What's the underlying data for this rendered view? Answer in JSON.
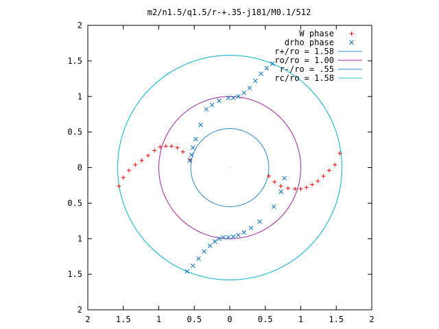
{
  "chart_data": {
    "type": "scatter",
    "title": "m2/n1.5/q1.5/r-+.35-j181/M0.1/512",
    "xlim": [
      -2,
      2
    ],
    "ylim": [
      -2,
      2
    ],
    "grid": false,
    "legend_position": "top-right",
    "x_ticks": [
      -2,
      -1.5,
      -1,
      -0.5,
      0,
      0.5,
      1,
      1.5,
      2
    ],
    "x_tick_labels": [
      "2",
      "1.5",
      "1",
      "0.5",
      "0",
      "0.5",
      "1",
      "1.5",
      "2"
    ],
    "y_ticks": [
      2,
      1.5,
      1,
      0.5,
      0,
      -0.5,
      -1,
      -1.5,
      -2
    ],
    "y_tick_labels": [
      "2",
      "1.5",
      "1",
      "0.5",
      "0",
      "0.5",
      "1",
      "1.5",
      "2"
    ],
    "series": [
      {
        "name": "W phase",
        "marker": "plus",
        "color": "#ff0000",
        "x": [
          -1.56,
          -1.5,
          -1.42,
          -1.33,
          -1.24,
          -1.15,
          -1.06,
          -0.98,
          -0.9,
          -0.82,
          -0.74,
          -0.66,
          -0.56,
          0.55,
          0.63,
          0.72,
          0.82,
          0.92,
          1.0,
          1.08,
          1.16,
          1.24,
          1.32,
          1.4,
          1.48,
          1.55
        ],
        "y": [
          -0.26,
          -0.14,
          -0.04,
          0.04,
          0.1,
          0.17,
          0.24,
          0.29,
          0.3,
          0.3,
          0.28,
          0.22,
          0.11,
          -0.12,
          -0.2,
          -0.26,
          -0.29,
          -0.3,
          -0.3,
          -0.28,
          -0.24,
          -0.19,
          -0.12,
          -0.04,
          0.04,
          0.2
        ]
      },
      {
        "name": "drho phase",
        "marker": "cross",
        "color": "#0070c0",
        "x": [
          -0.6,
          -0.52,
          -0.44,
          -0.36,
          -0.28,
          -0.21,
          -0.15,
          -0.09,
          -0.02,
          0.05,
          0.12,
          0.2,
          0.3,
          0.42,
          0.62,
          0.72,
          0.77,
          0.6,
          0.52,
          0.44,
          0.36,
          0.28,
          0.2,
          0.12,
          0.05,
          -0.02,
          -0.15,
          -0.25,
          -0.33,
          -0.41,
          -0.48,
          -0.52,
          -0.54,
          -0.56
        ],
        "y": [
          -1.46,
          -1.38,
          -1.28,
          -1.18,
          -1.1,
          -1.04,
          -1.0,
          -0.98,
          -0.98,
          -0.97,
          -0.95,
          -0.91,
          -0.85,
          -0.76,
          -0.55,
          -0.34,
          -0.15,
          1.46,
          1.4,
          1.32,
          1.22,
          1.12,
          1.05,
          1.0,
          0.98,
          0.98,
          0.94,
          0.88,
          0.82,
          0.6,
          0.4,
          0.28,
          0.18,
          0.1
        ]
      }
    ],
    "circles": [
      {
        "name": "r+/ro = 1.58",
        "radius": 1.58,
        "color": "#2a89c8"
      },
      {
        "name": "ro/ro = 1.00",
        "radius": 1.0,
        "color": "#a020a0"
      },
      {
        "name": "r-/ro = .55",
        "radius": 0.55,
        "color": "#2a89c8"
      },
      {
        "name": "rc/ro = 1.58",
        "radius": 1.58,
        "color": "#22c0d8"
      }
    ],
    "legend_entries": [
      {
        "label": "W phase",
        "color": "#ff0000",
        "style": "plus"
      },
      {
        "label": "drho phase",
        "color": "#0070c0",
        "style": "cross"
      },
      {
        "label": "r+/ro = 1.58",
        "color": "#2a89c8",
        "style": "line"
      },
      {
        "label": "ro/ro = 1.00",
        "color": "#a020a0",
        "style": "line"
      },
      {
        "label": "r-/ro = .55",
        "color": "#2a89c8",
        "style": "line"
      },
      {
        "label": "rc/ro = 1.58",
        "color": "#22c0d8",
        "style": "line"
      }
    ]
  }
}
